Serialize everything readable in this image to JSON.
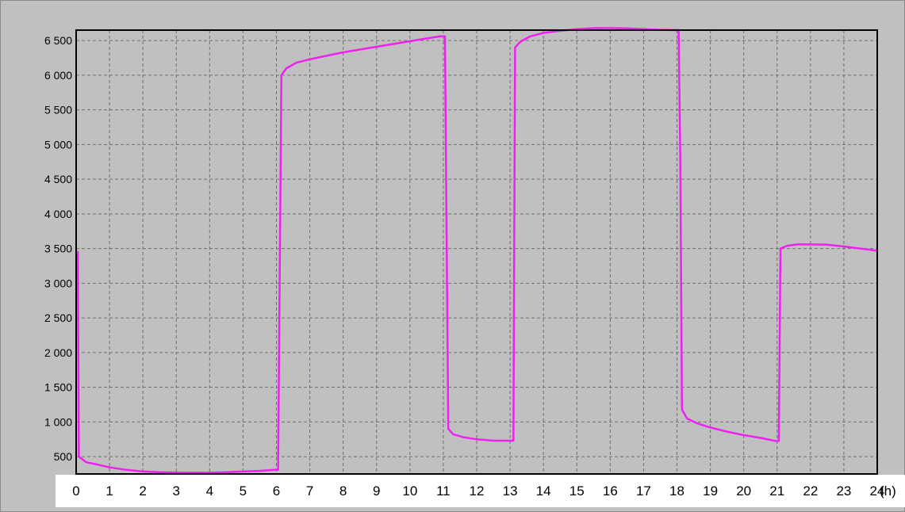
{
  "chart_data": {
    "type": "line",
    "title": "",
    "xlabel": "",
    "ylabel": "",
    "x_unit": "(h)",
    "xlim": [
      0,
      24
    ],
    "ylim": [
      250,
      6650
    ],
    "x_ticks": [
      0,
      1,
      2,
      3,
      4,
      5,
      6,
      7,
      8,
      9,
      10,
      11,
      12,
      13,
      14,
      15,
      16,
      17,
      18,
      19,
      20,
      21,
      22,
      23,
      24
    ],
    "y_ticks": [
      500,
      1000,
      1500,
      2000,
      2500,
      3000,
      3500,
      4000,
      4500,
      5000,
      5500,
      6000,
      6500
    ],
    "y_tick_labels": [
      "500",
      "1 000",
      "1 500",
      "2 000",
      "2 500",
      "3 000",
      "3 500",
      "4 000",
      "4 500",
      "5 000",
      "5 500",
      "6 000",
      "6 500"
    ],
    "grid": true,
    "legend": "none",
    "series": [
      {
        "color": "#ee22ee",
        "points": [
          [
            0.0,
            3450
          ],
          [
            0.05,
            3450
          ],
          [
            0.08,
            500
          ],
          [
            0.3,
            420
          ],
          [
            0.6,
            390
          ],
          [
            1.0,
            345
          ],
          [
            1.5,
            310
          ],
          [
            2.0,
            285
          ],
          [
            2.5,
            275
          ],
          [
            3.0,
            270
          ],
          [
            3.5,
            268
          ],
          [
            4.0,
            268
          ],
          [
            4.5,
            275
          ],
          [
            5.0,
            285
          ],
          [
            5.5,
            295
          ],
          [
            5.95,
            310
          ],
          [
            6.05,
            310
          ],
          [
            6.15,
            6000
          ],
          [
            6.3,
            6100
          ],
          [
            6.6,
            6180
          ],
          [
            7.0,
            6230
          ],
          [
            7.5,
            6280
          ],
          [
            8.0,
            6330
          ],
          [
            8.5,
            6370
          ],
          [
            9.0,
            6410
          ],
          [
            9.5,
            6450
          ],
          [
            10.0,
            6490
          ],
          [
            10.5,
            6530
          ],
          [
            10.9,
            6560
          ],
          [
            11.05,
            6560
          ],
          [
            11.1,
            3700
          ],
          [
            11.15,
            900
          ],
          [
            11.3,
            820
          ],
          [
            11.6,
            780
          ],
          [
            12.0,
            750
          ],
          [
            12.5,
            730
          ],
          [
            13.0,
            730
          ],
          [
            13.1,
            730
          ],
          [
            13.15,
            6400
          ],
          [
            13.3,
            6480
          ],
          [
            13.6,
            6560
          ],
          [
            14.0,
            6610
          ],
          [
            14.5,
            6640
          ],
          [
            15.0,
            6665
          ],
          [
            15.5,
            6678
          ],
          [
            16.0,
            6680
          ],
          [
            16.5,
            6675
          ],
          [
            17.0,
            6665
          ],
          [
            17.5,
            6655
          ],
          [
            17.95,
            6650
          ],
          [
            18.05,
            6650
          ],
          [
            18.1,
            4800
          ],
          [
            18.15,
            1180
          ],
          [
            18.3,
            1050
          ],
          [
            18.6,
            980
          ],
          [
            19.0,
            920
          ],
          [
            19.5,
            860
          ],
          [
            20.0,
            810
          ],
          [
            20.5,
            770
          ],
          [
            20.95,
            725
          ],
          [
            21.05,
            725
          ],
          [
            21.1,
            3500
          ],
          [
            21.3,
            3540
          ],
          [
            21.6,
            3560
          ],
          [
            22.0,
            3560
          ],
          [
            22.5,
            3555
          ],
          [
            23.0,
            3530
          ],
          [
            23.5,
            3500
          ],
          [
            23.9,
            3475
          ],
          [
            24.0,
            3470
          ]
        ]
      }
    ]
  }
}
